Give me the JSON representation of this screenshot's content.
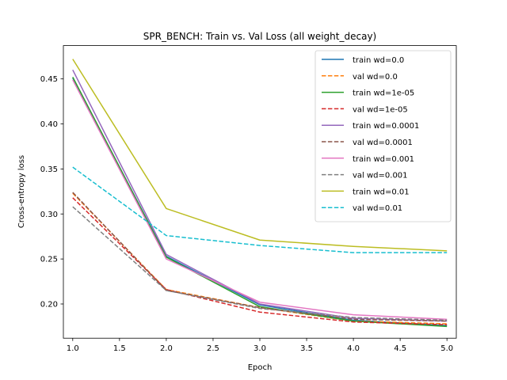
{
  "chart_data": {
    "type": "line",
    "title": "SPR_BENCH: Train vs. Val Loss (all weight_decay)",
    "xlabel": "Epoch",
    "ylabel": "Cross-entropy loss",
    "xlim": [
      0.9,
      5.1
    ],
    "ylim": [
      0.162,
      0.487
    ],
    "xticks": [
      "1.0",
      "1.5",
      "2.0",
      "2.5",
      "3.0",
      "3.5",
      "4.0",
      "4.5",
      "5.0"
    ],
    "yticks": [
      "0.20",
      "0.25",
      "0.30",
      "0.35",
      "0.40",
      "0.45"
    ],
    "grid": false,
    "legend_position": "top-right",
    "x": [
      1,
      2,
      3,
      4,
      5
    ],
    "series": [
      {
        "name": "train wd=0.0",
        "color": "#1f77b4",
        "dash": "solid",
        "values": [
          0.451,
          0.253,
          0.199,
          0.182,
          0.176
        ]
      },
      {
        "name": "val wd=0.0",
        "color": "#ff7f0e",
        "dash": "dashed",
        "values": [
          0.323,
          0.216,
          0.196,
          0.181,
          0.178
        ]
      },
      {
        "name": "train wd=1e-05",
        "color": "#2ca02c",
        "dash": "solid",
        "values": [
          0.452,
          0.252,
          0.197,
          0.181,
          0.175
        ]
      },
      {
        "name": "val wd=1e-05",
        "color": "#d62728",
        "dash": "dashed",
        "values": [
          0.318,
          0.216,
          0.191,
          0.18,
          0.177
        ]
      },
      {
        "name": "train wd=0.0001",
        "color": "#9467bd",
        "dash": "solid",
        "values": [
          0.46,
          0.255,
          0.2,
          0.184,
          0.181
        ]
      },
      {
        "name": "val wd=0.0001",
        "color": "#8c564b",
        "dash": "dashed",
        "values": [
          0.324,
          0.215,
          0.196,
          0.183,
          0.181
        ]
      },
      {
        "name": "train wd=0.001",
        "color": "#e377c2",
        "dash": "solid",
        "values": [
          0.449,
          0.25,
          0.202,
          0.188,
          0.183
        ]
      },
      {
        "name": "val wd=0.001",
        "color": "#7f7f7f",
        "dash": "dashed",
        "values": [
          0.308,
          0.215,
          0.195,
          0.185,
          0.182
        ]
      },
      {
        "name": "train wd=0.01",
        "color": "#bcbd22",
        "dash": "solid",
        "values": [
          0.472,
          0.306,
          0.271,
          0.264,
          0.259
        ]
      },
      {
        "name": "val wd=0.01",
        "color": "#17becf",
        "dash": "dashed",
        "values": [
          0.352,
          0.276,
          0.265,
          0.257,
          0.257
        ]
      }
    ]
  }
}
